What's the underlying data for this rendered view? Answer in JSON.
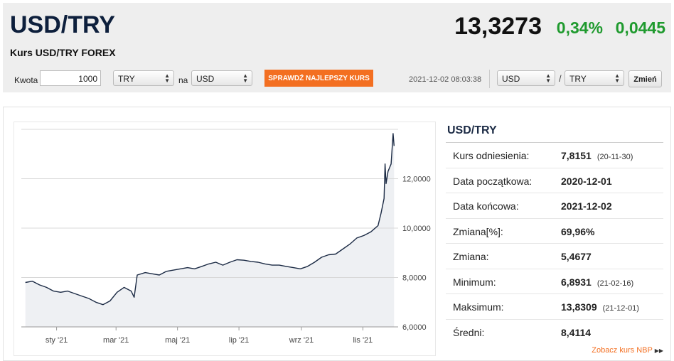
{
  "header": {
    "pair": "USD/TRY",
    "subtitle": "Kurs USD/TRY FOREX",
    "price": "13,3273",
    "change_pct": "0,34%",
    "change_abs": "0,0445",
    "change_color": "#1f9a2e"
  },
  "converter": {
    "amount_label": "Kwota",
    "amount_value": "1000",
    "currency_from": "TRY",
    "to_label": "na",
    "currency_to": "USD",
    "check_button": "SPRAWDŹ NAJLEPSZY KURS",
    "check_button_color": "#f36f21",
    "timestamp": "2021-12-02 08:03:38",
    "pair_base": "USD",
    "pair_separator": "/",
    "pair_quote": "TRY",
    "change_button": "Zmień"
  },
  "stats": {
    "title": "USD/TRY",
    "rows": [
      {
        "label": "Kurs odniesienia:",
        "value": "7,8151",
        "date": "(20-11-30)"
      },
      {
        "label": "Data początkowa:",
        "value": "2020-12-01",
        "date": ""
      },
      {
        "label": "Data końcowa:",
        "value": "2021-12-02",
        "date": ""
      },
      {
        "label": "Zmiana[%]:",
        "value": "69,96%",
        "date": ""
      },
      {
        "label": "Zmiana:",
        "value": "5,4677",
        "date": ""
      },
      {
        "label": "Minimum:",
        "value": "6,8931",
        "date": "(21-02-16)"
      },
      {
        "label": "Maksimum:",
        "value": "13,8309",
        "date": "(21-12-01)"
      },
      {
        "label": "Średni:",
        "value": "8,4114",
        "date": ""
      }
    ],
    "nbp_link": "Zobacz kurs NBP",
    "nbp_link_icon": "double-arrow-right-icon"
  },
  "chart_data": {
    "type": "area",
    "title": "",
    "xlabel": "",
    "ylabel": "",
    "x_ticks": [
      "sty '21",
      "mar '21",
      "maj '21",
      "lip '21",
      "wrz '21",
      "lis '21"
    ],
    "y_ticks": [
      "6,0000",
      "8,0000",
      "10,0000",
      "12,0000"
    ],
    "ylim": [
      6,
      14
    ],
    "grid": true,
    "line_color": "#1b2a44",
    "fill_color": "#eef0f3",
    "series": [
      {
        "x": [
          "2020-12-01",
          "2020-12-08",
          "2020-12-15",
          "2020-12-22",
          "2020-12-29",
          "2021-01-05",
          "2021-01-12",
          "2021-01-19",
          "2021-01-26",
          "2021-02-02",
          "2021-02-09",
          "2021-02-16",
          "2021-02-23",
          "2021-03-02",
          "2021-03-09",
          "2021-03-16",
          "2021-03-19",
          "2021-03-22",
          "2021-03-30",
          "2021-04-06",
          "2021-04-13",
          "2021-04-20",
          "2021-04-27",
          "2021-05-04",
          "2021-05-11",
          "2021-05-18",
          "2021-05-25",
          "2021-06-01",
          "2021-06-08",
          "2021-06-15",
          "2021-06-22",
          "2021-06-29",
          "2021-07-06",
          "2021-07-13",
          "2021-07-20",
          "2021-07-27",
          "2021-08-03",
          "2021-08-10",
          "2021-08-17",
          "2021-08-24",
          "2021-08-31",
          "2021-09-07",
          "2021-09-14",
          "2021-09-21",
          "2021-09-28",
          "2021-10-05",
          "2021-10-12",
          "2021-10-19",
          "2021-10-26",
          "2021-11-02",
          "2021-11-09",
          "2021-11-16",
          "2021-11-19",
          "2021-11-22",
          "2021-11-23",
          "2021-11-24",
          "2021-11-26",
          "2021-11-29",
          "2021-12-01",
          "2021-12-02"
        ],
        "y": [
          7.8,
          7.85,
          7.7,
          7.6,
          7.45,
          7.4,
          7.45,
          7.35,
          7.25,
          7.15,
          7.0,
          6.9,
          7.05,
          7.4,
          7.6,
          7.45,
          7.2,
          8.1,
          8.2,
          8.15,
          8.1,
          8.25,
          8.3,
          8.35,
          8.4,
          8.35,
          8.45,
          8.55,
          8.62,
          8.5,
          8.62,
          8.72,
          8.7,
          8.65,
          8.62,
          8.55,
          8.5,
          8.5,
          8.45,
          8.4,
          8.35,
          8.45,
          8.62,
          8.82,
          8.92,
          8.95,
          9.15,
          9.35,
          9.6,
          9.7,
          9.85,
          10.1,
          10.6,
          11.2,
          12.6,
          11.8,
          12.3,
          12.6,
          13.83,
          13.33
        ]
      }
    ]
  }
}
